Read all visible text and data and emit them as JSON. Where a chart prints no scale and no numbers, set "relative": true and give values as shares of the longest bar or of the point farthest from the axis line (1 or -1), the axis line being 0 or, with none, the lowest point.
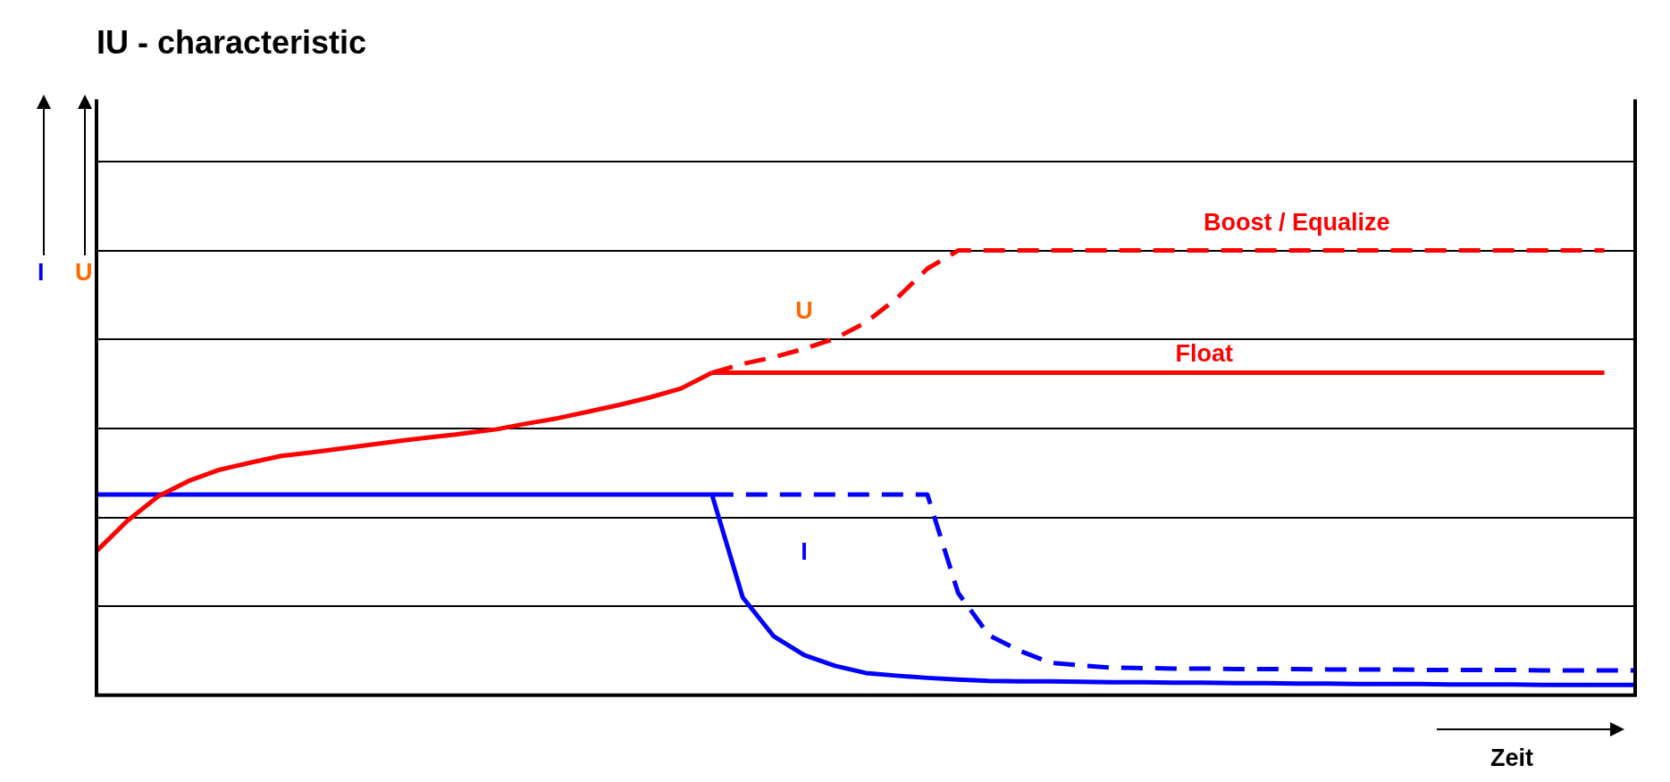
{
  "chart_data": {
    "type": "line",
    "title": "IU - characteristic",
    "xlabel": "Zeit",
    "ylabel": "I",
    "y2label": "U",
    "relative": true,
    "grid": "y",
    "legend": false,
    "marker": "none",
    "annotations": [
      "U"
    ],
    "categories": [
      null,
      null,
      null,
      null,
      null,
      null,
      null,
      null,
      null,
      null,
      null,
      null,
      null,
      null,
      null,
      null,
      null,
      null,
      null,
      null,
      null,
      null,
      null,
      null,
      null,
      null,
      null,
      null,
      null,
      null,
      null,
      null,
      null,
      null,
      null,
      null,
      null,
      null,
      null,
      null,
      null,
      null,
      null,
      null,
      null,
      null,
      null,
      null,
      null,
      null,
      null
    ],
    "series": [
      {
        "color": "#ff0000",
        "line_style": "solid",
        "values": [
          0.324,
          0.392,
          0.447,
          0.482,
          0.507,
          0.523,
          0.538,
          0.546,
          0.555,
          0.564,
          0.573,
          0.581,
          0.589,
          0.598,
          0.611,
          0.623,
          0.638,
          0.653,
          0.67,
          0.69,
          0.725,
          null,
          null,
          null,
          null,
          null,
          null,
          null,
          null,
          null,
          null,
          null,
          null,
          null,
          null,
          null,
          null,
          null,
          null,
          null,
          null,
          null,
          null,
          null,
          null,
          null,
          null,
          null,
          null,
          null,
          null
        ]
      },
      {
        "name": "Float",
        "color": "#ff0000",
        "line_style": "solid",
        "values": [
          null,
          null,
          null,
          null,
          null,
          null,
          null,
          null,
          null,
          null,
          null,
          null,
          null,
          null,
          null,
          null,
          null,
          null,
          null,
          null,
          0.725,
          0.725,
          0.725,
          0.725,
          0.725,
          0.725,
          0.725,
          0.725,
          0.725,
          0.725,
          0.725,
          0.725,
          0.725,
          0.725,
          0.725,
          0.725,
          0.725,
          0.725,
          0.725,
          0.725,
          0.725,
          0.725,
          0.725,
          0.725,
          0.725,
          0.725,
          0.725,
          0.725,
          0.725,
          0.725,
          null
        ]
      },
      {
        "name": "Boost / Equalize",
        "color": "#ff0000",
        "line_style": "dashed",
        "values": [
          null,
          null,
          null,
          null,
          null,
          null,
          null,
          null,
          null,
          null,
          null,
          null,
          null,
          null,
          null,
          null,
          null,
          null,
          null,
          null,
          0.725,
          0.745,
          0.76,
          0.779,
          0.802,
          0.838,
          0.892,
          0.959,
          1,
          1,
          1,
          1,
          1,
          1,
          1,
          1,
          1,
          1,
          1,
          1,
          1,
          1,
          1,
          1,
          1,
          1,
          1,
          1,
          1,
          1,
          null
        ]
      },
      {
        "name": "I",
        "color": "#0000ff",
        "line_style": "solid",
        "values": [
          0.451,
          0.451,
          0.451,
          0.451,
          0.451,
          0.451,
          0.451,
          0.451,
          0.451,
          0.451,
          0.451,
          0.451,
          0.451,
          0.451,
          0.451,
          0.451,
          0.451,
          0.451,
          0.451,
          0.451,
          0.451,
          0.22,
          0.133,
          0.09,
          0.066,
          0.05,
          0.044,
          0.039,
          0.035,
          0.032,
          0.031,
          0.031,
          0.03,
          0.029,
          0.029,
          0.028,
          0.028,
          0.027,
          0.027,
          0.026,
          0.026,
          0.025,
          0.025,
          0.025,
          0.024,
          0.024,
          0.024,
          0.023,
          0.023,
          0.023,
          0.023
        ]
      },
      {
        "color": "#0000ff",
        "line_style": "dashed",
        "values": [
          null,
          null,
          null,
          null,
          null,
          null,
          null,
          null,
          null,
          null,
          null,
          null,
          null,
          null,
          null,
          null,
          null,
          null,
          null,
          null,
          0.451,
          0.451,
          0.451,
          0.451,
          0.451,
          0.451,
          0.451,
          0.451,
          0.23,
          0.135,
          0.1,
          0.073,
          0.067,
          0.062,
          0.061,
          0.06,
          0.06,
          0.059,
          0.059,
          0.059,
          0.058,
          0.058,
          0.058,
          0.057,
          0.057,
          0.057,
          0.057,
          0.056,
          0.056,
          0.056,
          0.056
        ]
      }
    ]
  }
}
